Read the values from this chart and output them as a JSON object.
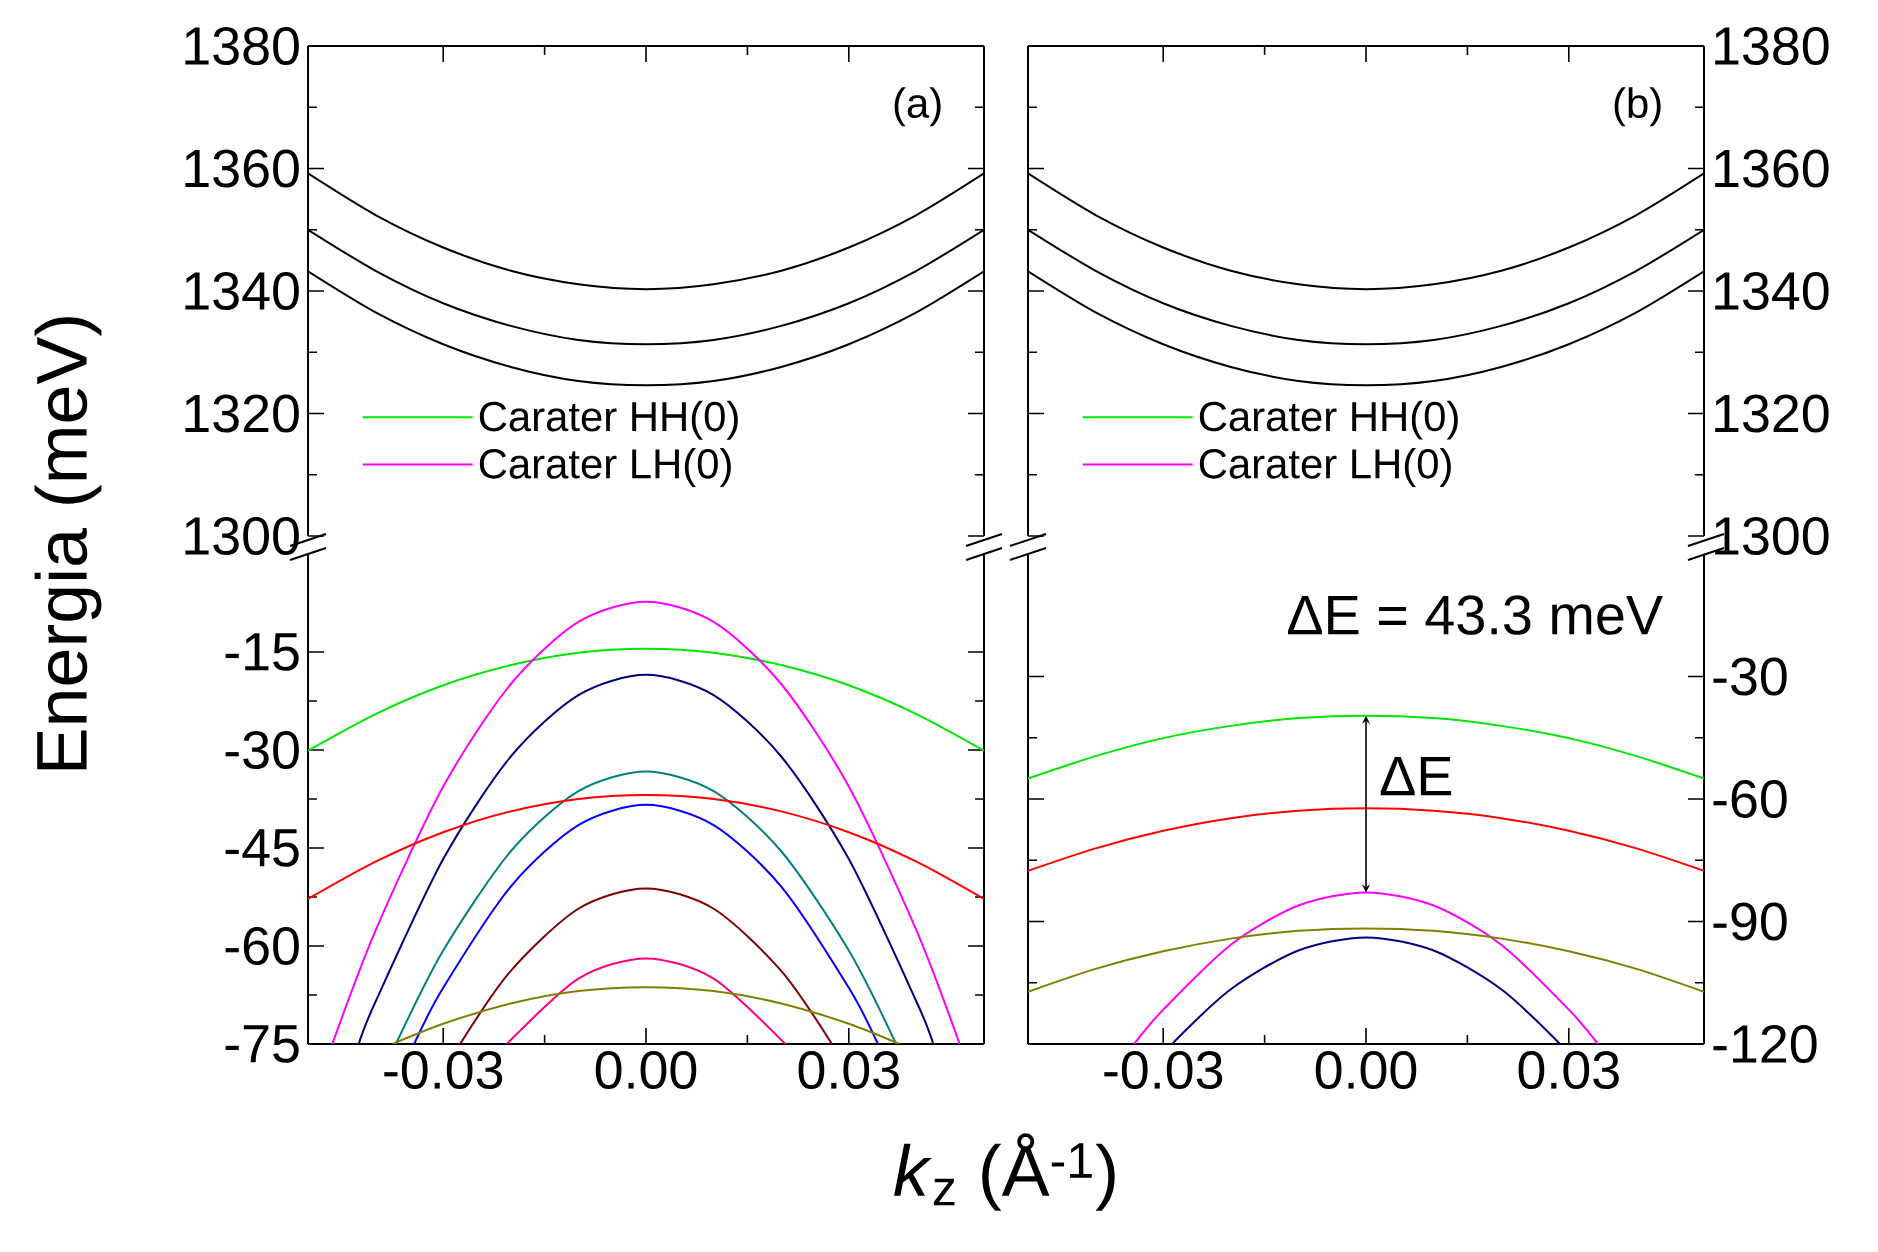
{
  "chart_data": [
    {
      "type": "line",
      "xlim": [
        -0.05,
        0.05
      ],
      "xticks": [
        -0.03,
        0,
        0.03
      ],
      "ylim": [
        1300,
        1380
      ],
      "yticks": [
        1300,
        1320,
        1340,
        1360,
        1380
      ],
      "tick_labels": "y",
      "annotations": [
        "(a)"
      ],
      "series": [
        {
          "color": "#000000",
          "x": [
            -0.05,
            -0.04,
            -0.03,
            -0.02,
            -0.01,
            0,
            0.01,
            0.02,
            0.03,
            0.04,
            0.05
          ],
          "values": [
            1359.2,
            1352.4,
            1347.1,
            1343.3,
            1341.1,
            1340.3,
            1341.1,
            1343.3,
            1347.1,
            1352.4,
            1359.2
          ]
        },
        {
          "color": "#000000",
          "x": [
            -0.05,
            -0.04,
            -0.03,
            -0.02,
            -0.01,
            0,
            0.01,
            0.02,
            0.03,
            0.04,
            0.05
          ],
          "values": [
            1350,
            1343.3,
            1338,
            1334.3,
            1332,
            1331.3,
            1332,
            1334.3,
            1338,
            1343.3,
            1350
          ]
        },
        {
          "color": "#000000",
          "x": [
            -0.05,
            -0.04,
            -0.03,
            -0.02,
            -0.01,
            0,
            0.01,
            0.02,
            0.03,
            0.04,
            0.05
          ],
          "values": [
            1343.2,
            1336.5,
            1331.3,
            1327.6,
            1325.3,
            1324.6,
            1325.3,
            1327.6,
            1331.3,
            1336.5,
            1343.2
          ]
        }
      ]
    },
    {
      "type": "line",
      "xlim": [
        -0.05,
        0.05
      ],
      "xticks": [
        {
          "value": -0.03,
          "label": "-0.03"
        },
        {
          "value": 0,
          "label": "0.00"
        },
        {
          "value": 0.03,
          "label": "0.03"
        }
      ],
      "ylim": [
        -75,
        0
      ],
      "yticks": [
        -75,
        -60,
        -45,
        -30,
        -15
      ],
      "xlabel": "*k*$_{z}$ (Å$^{-1}$)",
      "ylabel": "Energia (meV)",
      "legend": "top left",
      "series": [
        {
          "name": "Carater HH(0)",
          "color": "#00e600",
          "x": [
            -0.05,
            -0.04,
            -0.03,
            -0.02,
            -0.01,
            0,
            0.01,
            0.02,
            0.03,
            0.04,
            0.05
          ],
          "values": [
            -30.1,
            -24.5,
            -20.1,
            -17,
            -15.1,
            -14.5,
            -15.1,
            -17,
            -20.1,
            -24.5,
            -30.1
          ]
        },
        {
          "name": "Carater LH(0)",
          "color": "#ff00ff",
          "x": [
            -0.0464,
            -0.04,
            -0.03,
            -0.02,
            -0.01,
            0,
            0.01,
            0.02,
            0.03,
            0.04,
            0.0464
          ],
          "values": [
            -75,
            -57.6,
            -35.6,
            -19.9,
            -10.4,
            -7.3,
            -10.4,
            -19.9,
            -35.6,
            -57.6,
            -75
          ]
        },
        {
          "color": "#000080",
          "x": [
            -0.0425,
            -0.04,
            -0.03,
            -0.02,
            -0.01,
            0,
            0.01,
            0.02,
            0.03,
            0.04,
            0.0425
          ],
          "values": [
            -75,
            -68.5,
            -46.7,
            -31,
            -21.6,
            -18.5,
            -21.6,
            -31,
            -46.7,
            -68.5,
            -75
          ]
        },
        {
          "color": "#008080",
          "x": [
            -0.037,
            -0.03,
            -0.02,
            -0.01,
            0,
            0.01,
            0.02,
            0.03,
            0.037
          ],
          "values": [
            -75,
            -60.7,
            -45.5,
            -36.3,
            -33.3,
            -36.3,
            -45.5,
            -60.7,
            -75
          ]
        },
        {
          "color": "#ff0000",
          "x": [
            -0.05,
            -0.04,
            -0.03,
            -0.02,
            -0.01,
            0,
            0.01,
            0.02,
            0.03,
            0.04,
            0.05
          ],
          "values": [
            -52.8,
            -47.1,
            -42.6,
            -39.4,
            -37.5,
            -36.9,
            -37.5,
            -39.4,
            -42.6,
            -47.1,
            -52.8
          ]
        },
        {
          "color": "#0000ff",
          "x": [
            -0.0343,
            -0.03,
            -0.02,
            -0.01,
            0,
            0.01,
            0.02,
            0.03,
            0.0343
          ],
          "values": [
            -75,
            -66.4,
            -50.9,
            -41.5,
            -38.4,
            -41.5,
            -50.9,
            -66.4,
            -75
          ]
        },
        {
          "color": "#800000",
          "x": [
            -0.0275,
            -0.02,
            -0.01,
            0,
            0.01,
            0.02,
            0.0275
          ],
          "values": [
            -75,
            -63.8,
            -54.3,
            -51.2,
            -54.3,
            -63.8,
            -75
          ]
        },
        {
          "color": "#ff0080",
          "x": [
            -0.0206,
            -0.01,
            0,
            0.01,
            0.0206
          ],
          "values": [
            -75,
            -65,
            -61.9,
            -65,
            -75
          ]
        },
        {
          "color": "#808000",
          "x": [
            -0.0375,
            -0.03,
            -0.02,
            -0.01,
            0,
            0.01,
            0.02,
            0.03,
            0.0375
          ],
          "values": [
            -75,
            -71.9,
            -68.8,
            -66.9,
            -66.3,
            -66.9,
            -68.8,
            -71.9,
            -75
          ]
        }
      ]
    },
    {
      "type": "line",
      "xlim": [
        -0.05,
        0.05
      ],
      "xticks": [
        -0.03,
        0,
        0.03
      ],
      "ylim": [
        1300,
        1380
      ],
      "yticks": [
        1300,
        1320,
        1340,
        1360,
        1380
      ],
      "tick_labels": "y",
      "annotations": [
        "(b)"
      ],
      "series": [
        {
          "color": "#000000",
          "x": [
            -0.05,
            -0.04,
            -0.03,
            -0.02,
            -0.01,
            0,
            0.01,
            0.02,
            0.03,
            0.04,
            0.05
          ],
          "values": [
            1359.2,
            1352.4,
            1347.1,
            1343.3,
            1341.1,
            1340.3,
            1341.1,
            1343.3,
            1347.1,
            1352.4,
            1359.2
          ]
        },
        {
          "color": "#000000",
          "x": [
            -0.05,
            -0.04,
            -0.03,
            -0.02,
            -0.01,
            0,
            0.01,
            0.02,
            0.03,
            0.04,
            0.05
          ],
          "values": [
            1350,
            1343.3,
            1338,
            1334.3,
            1332,
            1331.3,
            1332,
            1334.3,
            1338,
            1343.3,
            1350
          ]
        },
        {
          "color": "#000000",
          "x": [
            -0.05,
            -0.04,
            -0.03,
            -0.02,
            -0.01,
            0,
            0.01,
            0.02,
            0.03,
            0.04,
            0.05
          ],
          "values": [
            1343.2,
            1336.5,
            1331.3,
            1327.6,
            1325.3,
            1324.6,
            1325.3,
            1327.6,
            1331.3,
            1336.5,
            1343.2
          ]
        }
      ]
    },
    {
      "type": "line",
      "xlim": [
        -0.05,
        0.05
      ],
      "xticks": [
        {
          "value": -0.03,
          "label": "-0.03"
        },
        {
          "value": 0,
          "label": "0.00"
        },
        {
          "value": 0.03,
          "label": "0.03"
        }
      ],
      "ylim": [
        -120,
        0
      ],
      "yticks": [
        -120,
        -90,
        -60,
        -30
      ],
      "legend": "top left",
      "annotations": [
        "ΔE = 43.3 meV",
        {
          "text": "ΔE",
          "x": 0,
          "y": -82.9
        }
      ],
      "series": [
        {
          "name": "Carater HH(0)",
          "color": "#00e600",
          "x": [
            -0.05,
            -0.04,
            -0.03,
            -0.02,
            -0.01,
            0,
            0.01,
            0.02,
            0.03,
            0.04,
            0.05
          ],
          "values": [
            -55,
            -49.5,
            -45.1,
            -42.1,
            -40.2,
            -39.6,
            -40.2,
            -42.1,
            -45.1,
            -49.5,
            -55
          ]
        },
        {
          "name": "Carater LH(0)",
          "color": "#ff00ff",
          "x": [
            -0.0343,
            -0.03,
            -0.02,
            -0.01,
            0,
            0.01,
            0.02,
            0.03,
            0.0343
          ],
          "values": [
            -120,
            -111.6,
            -95.7,
            -86.1,
            -82.9,
            -86.1,
            -95.7,
            -111.6,
            -120
          ]
        },
        {
          "color": "#ff0000",
          "x": [
            -0.05,
            -0.04,
            -0.03,
            -0.02,
            -0.01,
            0,
            0.01,
            0.02,
            0.03,
            0.04,
            0.05
          ],
          "values": [
            -77.6,
            -72.1,
            -67.8,
            -64.7,
            -62.9,
            -62.3,
            -62.9,
            -64.7,
            -67.8,
            -72.1,
            -77.6
          ]
        },
        {
          "color": "#808000",
          "x": [
            -0.05,
            -0.04,
            -0.03,
            -0.02,
            -0.01,
            0,
            0.01,
            0.02,
            0.03,
            0.04,
            0.05
          ],
          "values": [
            -107.2,
            -101.6,
            -97.3,
            -94.2,
            -92.3,
            -91.7,
            -92.3,
            -94.2,
            -97.3,
            -101.6,
            -107.2
          ]
        },
        {
          "color": "#000080",
          "x": [
            -0.0287,
            -0.02,
            -0.01,
            0,
            0.01,
            0.02,
            0.0287
          ],
          "values": [
            -120,
            -106.6,
            -97.1,
            -93.9,
            -97.1,
            -106.6,
            -120
          ]
        }
      ]
    }
  ]
}
